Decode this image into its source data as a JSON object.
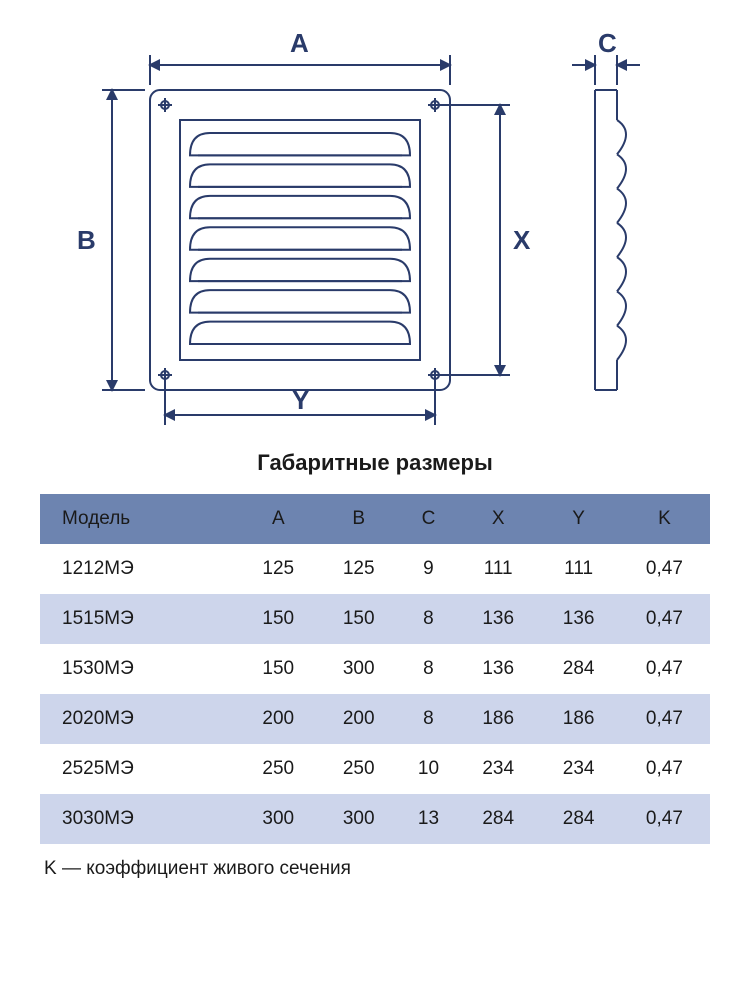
{
  "diagram": {
    "labels": {
      "A": "A",
      "B": "B",
      "C": "C",
      "X": "X",
      "Y": "Y"
    },
    "stroke_color": "#2a3b6a",
    "stroke_width": 2,
    "louver_count": 7,
    "screw_hole_radius": 4,
    "label_fontsize": 26,
    "label_color": "#2a3b6a"
  },
  "title": "Габаритные размеры",
  "table": {
    "header_bg": "#6d84b0",
    "row_alt_bg": "#cdd5eb",
    "row_bg": "#ffffff",
    "text_color": "#1a1a1a",
    "fontsize": 19,
    "columns": [
      "Модель",
      "A",
      "B",
      "C",
      "X",
      "Y",
      "K"
    ],
    "rows": [
      [
        "1212МЭ",
        "125",
        "125",
        "9",
        "111",
        "111",
        "0,47"
      ],
      [
        "1515МЭ",
        "150",
        "150",
        "8",
        "136",
        "136",
        "0,47"
      ],
      [
        "1530МЭ",
        "150",
        "300",
        "8",
        "136",
        "284",
        "0,47"
      ],
      [
        "2020МЭ",
        "200",
        "200",
        "8",
        "186",
        "186",
        "0,47"
      ],
      [
        "2525МЭ",
        "250",
        "250",
        "10",
        "234",
        "234",
        "0,47"
      ],
      [
        "3030МЭ",
        "300",
        "300",
        "13",
        "284",
        "284",
        "0,47"
      ]
    ]
  },
  "footnote": "K — коэффициент живого сечения"
}
